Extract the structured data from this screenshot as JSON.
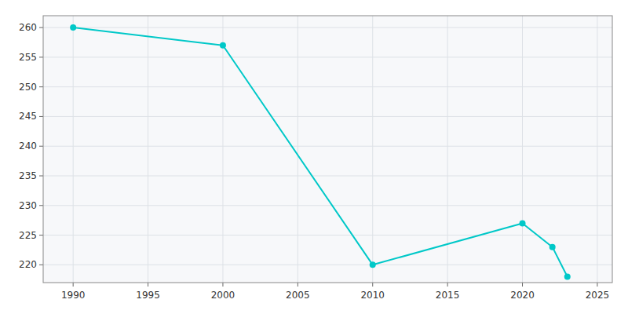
{
  "chart_data": {
    "type": "line",
    "x": [
      1990,
      2000,
      2010,
      2020,
      2022,
      2023
    ],
    "values": [
      260,
      257,
      220,
      227,
      223,
      218
    ],
    "color": "#00c8c8",
    "marker": "circle",
    "xlim": [
      1988,
      2026
    ],
    "ylim": [
      217,
      262
    ],
    "xticks": [
      1990,
      1995,
      2000,
      2005,
      2010,
      2015,
      2020,
      2025
    ],
    "yticks": [
      220,
      225,
      230,
      235,
      240,
      245,
      250,
      255,
      260
    ],
    "grid": true
  }
}
